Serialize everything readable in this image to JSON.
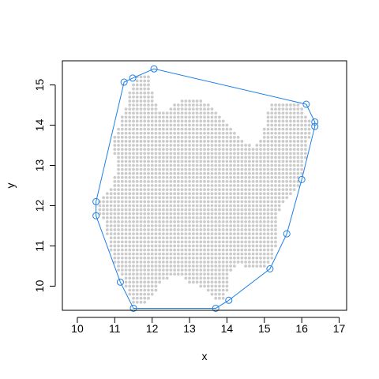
{
  "chart_data": {
    "type": "scatter",
    "title": "",
    "xlabel": "x",
    "ylabel": "y",
    "xlim": [
      9.6,
      17.2
    ],
    "ylim": [
      9.4,
      15.6
    ],
    "xticks": [
      10,
      11,
      12,
      13,
      14,
      15,
      16,
      17
    ],
    "yticks": [
      10,
      11,
      12,
      13,
      14,
      15
    ],
    "grid": false,
    "legend": "none",
    "colors": {
      "points": "#cccccc",
      "hull": "#1e7fe6",
      "axes": "#000000"
    },
    "point_grid": {
      "x_step": 0.1,
      "y_step": 0.1,
      "rows": [
        {
          "y": 15.2,
          "ranges": [
            [
              11.6,
              11.9
            ]
          ]
        },
        {
          "y": 15.1,
          "ranges": [
            [
              11.6,
              11.9
            ]
          ]
        },
        {
          "y": 15.0,
          "ranges": [
            [
              11.5,
              11.9
            ]
          ]
        },
        {
          "y": 14.9,
          "ranges": [
            [
              11.5,
              11.9
            ]
          ]
        },
        {
          "y": 14.8,
          "ranges": [
            [
              11.4,
              12.0
            ]
          ]
        },
        {
          "y": 14.7,
          "ranges": [
            [
              11.4,
              12.0
            ]
          ]
        },
        {
          "y": 14.6,
          "ranges": [
            [
              11.4,
              12.0
            ],
            [
              12.8,
              13.3
            ]
          ]
        },
        {
          "y": 14.5,
          "ranges": [
            [
              11.4,
              12.1
            ],
            [
              12.6,
              13.5
            ],
            [
              15.2,
              15.9
            ]
          ]
        },
        {
          "y": 14.4,
          "ranges": [
            [
              11.3,
              12.1
            ],
            [
              12.5,
              13.6
            ],
            [
              15.2,
              16.0
            ]
          ]
        },
        {
          "y": 14.3,
          "ranges": [
            [
              11.3,
              13.7
            ],
            [
              15.1,
              16.0
            ]
          ]
        },
        {
          "y": 14.2,
          "ranges": [
            [
              11.2,
              13.8
            ],
            [
              15.1,
              16.1
            ]
          ]
        },
        {
          "y": 14.1,
          "ranges": [
            [
              11.2,
              13.9
            ],
            [
              15.1,
              16.2
            ]
          ]
        },
        {
          "y": 14.0,
          "ranges": [
            [
              11.2,
              14.0
            ],
            [
              15.1,
              16.2
            ]
          ]
        },
        {
          "y": 13.9,
          "ranges": [
            [
              11.1,
              14.1
            ],
            [
              15.0,
              16.2
            ]
          ]
        },
        {
          "y": 13.8,
          "ranges": [
            [
              11.1,
              14.2
            ],
            [
              15.0,
              16.2
            ]
          ]
        },
        {
          "y": 13.7,
          "ranges": [
            [
              11.0,
              14.3
            ],
            [
              15.0,
              16.2
            ]
          ]
        },
        {
          "y": 13.6,
          "ranges": [
            [
              11.0,
              14.4
            ],
            [
              14.9,
              16.1
            ]
          ]
        },
        {
          "y": 13.5,
          "ranges": [
            [
              11.0,
              14.6
            ],
            [
              14.8,
              16.1
            ]
          ]
        },
        {
          "y": 13.4,
          "ranges": [
            [
              11.0,
              16.1
            ]
          ]
        },
        {
          "y": 13.3,
          "ranges": [
            [
              11.0,
              16.1
            ]
          ]
        },
        {
          "y": 13.2,
          "ranges": [
            [
              11.1,
              16.1
            ]
          ]
        },
        {
          "y": 13.1,
          "ranges": [
            [
              11.1,
              16.0
            ]
          ]
        },
        {
          "y": 13.0,
          "ranges": [
            [
              11.1,
              16.0
            ]
          ]
        },
        {
          "y": 12.9,
          "ranges": [
            [
              11.1,
              16.0
            ]
          ]
        },
        {
          "y": 12.8,
          "ranges": [
            [
              11.1,
              16.0
            ]
          ]
        },
        {
          "y": 12.7,
          "ranges": [
            [
              11.0,
              15.9
            ]
          ]
        },
        {
          "y": 12.6,
          "ranges": [
            [
              11.0,
              15.9
            ]
          ]
        },
        {
          "y": 12.5,
          "ranges": [
            [
              11.0,
              15.9
            ]
          ]
        },
        {
          "y": 12.4,
          "ranges": [
            [
              10.9,
              15.8
            ]
          ]
        },
        {
          "y": 12.3,
          "ranges": [
            [
              10.8,
              15.7
            ]
          ]
        },
        {
          "y": 12.2,
          "ranges": [
            [
              10.7,
              15.6
            ]
          ]
        },
        {
          "y": 12.1,
          "ranges": [
            [
              10.6,
              15.5
            ]
          ]
        },
        {
          "y": 12.0,
          "ranges": [
            [
              10.6,
              15.4
            ]
          ]
        },
        {
          "y": 11.9,
          "ranges": [
            [
              10.6,
              15.4
            ]
          ]
        },
        {
          "y": 11.8,
          "ranges": [
            [
              10.6,
              15.3
            ]
          ]
        },
        {
          "y": 11.7,
          "ranges": [
            [
              10.7,
              15.3
            ]
          ]
        },
        {
          "y": 11.6,
          "ranges": [
            [
              10.8,
              15.3
            ]
          ]
        },
        {
          "y": 11.5,
          "ranges": [
            [
              10.8,
              15.3
            ]
          ]
        },
        {
          "y": 11.4,
          "ranges": [
            [
              10.8,
              15.3
            ]
          ]
        },
        {
          "y": 11.3,
          "ranges": [
            [
              10.8,
              15.3
            ]
          ]
        },
        {
          "y": 11.2,
          "ranges": [
            [
              10.9,
              15.3
            ]
          ]
        },
        {
          "y": 11.1,
          "ranges": [
            [
              10.9,
              15.3
            ]
          ]
        },
        {
          "y": 11.0,
          "ranges": [
            [
              10.9,
              15.3
            ]
          ]
        },
        {
          "y": 10.9,
          "ranges": [
            [
              10.9,
              15.2
            ]
          ]
        },
        {
          "y": 10.8,
          "ranges": [
            [
              11.0,
              15.2
            ]
          ]
        },
        {
          "y": 10.7,
          "ranges": [
            [
              11.0,
              15.2
            ]
          ]
        },
        {
          "y": 10.6,
          "ranges": [
            [
              11.0,
              15.1
            ]
          ]
        },
        {
          "y": 10.5,
          "ranges": [
            [
              11.1,
              14.2
            ],
            [
              14.5,
              15.0
            ]
          ]
        },
        {
          "y": 10.4,
          "ranges": [
            [
              11.1,
              14.1
            ]
          ]
        },
        {
          "y": 10.3,
          "ranges": [
            [
              11.2,
              14.0
            ]
          ]
        },
        {
          "y": 10.2,
          "ranges": [
            [
              11.3,
              12.4
            ],
            [
              12.9,
              14.0
            ]
          ]
        },
        {
          "y": 10.1,
          "ranges": [
            [
              11.3,
              12.2
            ],
            [
              13.0,
              14.0
            ]
          ]
        },
        {
          "y": 10.0,
          "ranges": [
            [
              11.3,
              12.1
            ],
            [
              13.3,
              14.0
            ]
          ]
        },
        {
          "y": 9.9,
          "ranges": [
            [
              11.4,
              12.1
            ],
            [
              13.5,
              14.0
            ]
          ]
        },
        {
          "y": 9.8,
          "ranges": [
            [
              11.4,
              12.0
            ],
            [
              13.6,
              13.9
            ]
          ]
        },
        {
          "y": 9.7,
          "ranges": [
            [
              11.5,
              11.9
            ],
            [
              13.7,
              13.9
            ]
          ]
        },
        {
          "y": 9.6,
          "ranges": [
            [
              11.5,
              11.8
            ]
          ]
        }
      ]
    },
    "hull": [
      {
        "x": 11.5,
        "y": 9.45
      },
      {
        "x": 13.7,
        "y": 9.45
      },
      {
        "x": 14.05,
        "y": 9.65
      },
      {
        "x": 15.15,
        "y": 10.43
      },
      {
        "x": 15.6,
        "y": 11.3
      },
      {
        "x": 16.0,
        "y": 12.65
      },
      {
        "x": 16.35,
        "y": 13.97
      },
      {
        "x": 16.35,
        "y": 14.08
      },
      {
        "x": 16.12,
        "y": 14.52
      },
      {
        "x": 12.05,
        "y": 15.4
      },
      {
        "x": 11.48,
        "y": 15.17
      },
      {
        "x": 11.25,
        "y": 15.07
      },
      {
        "x": 10.5,
        "y": 12.1
      },
      {
        "x": 10.5,
        "y": 11.75
      },
      {
        "x": 11.15,
        "y": 10.1
      }
    ]
  }
}
